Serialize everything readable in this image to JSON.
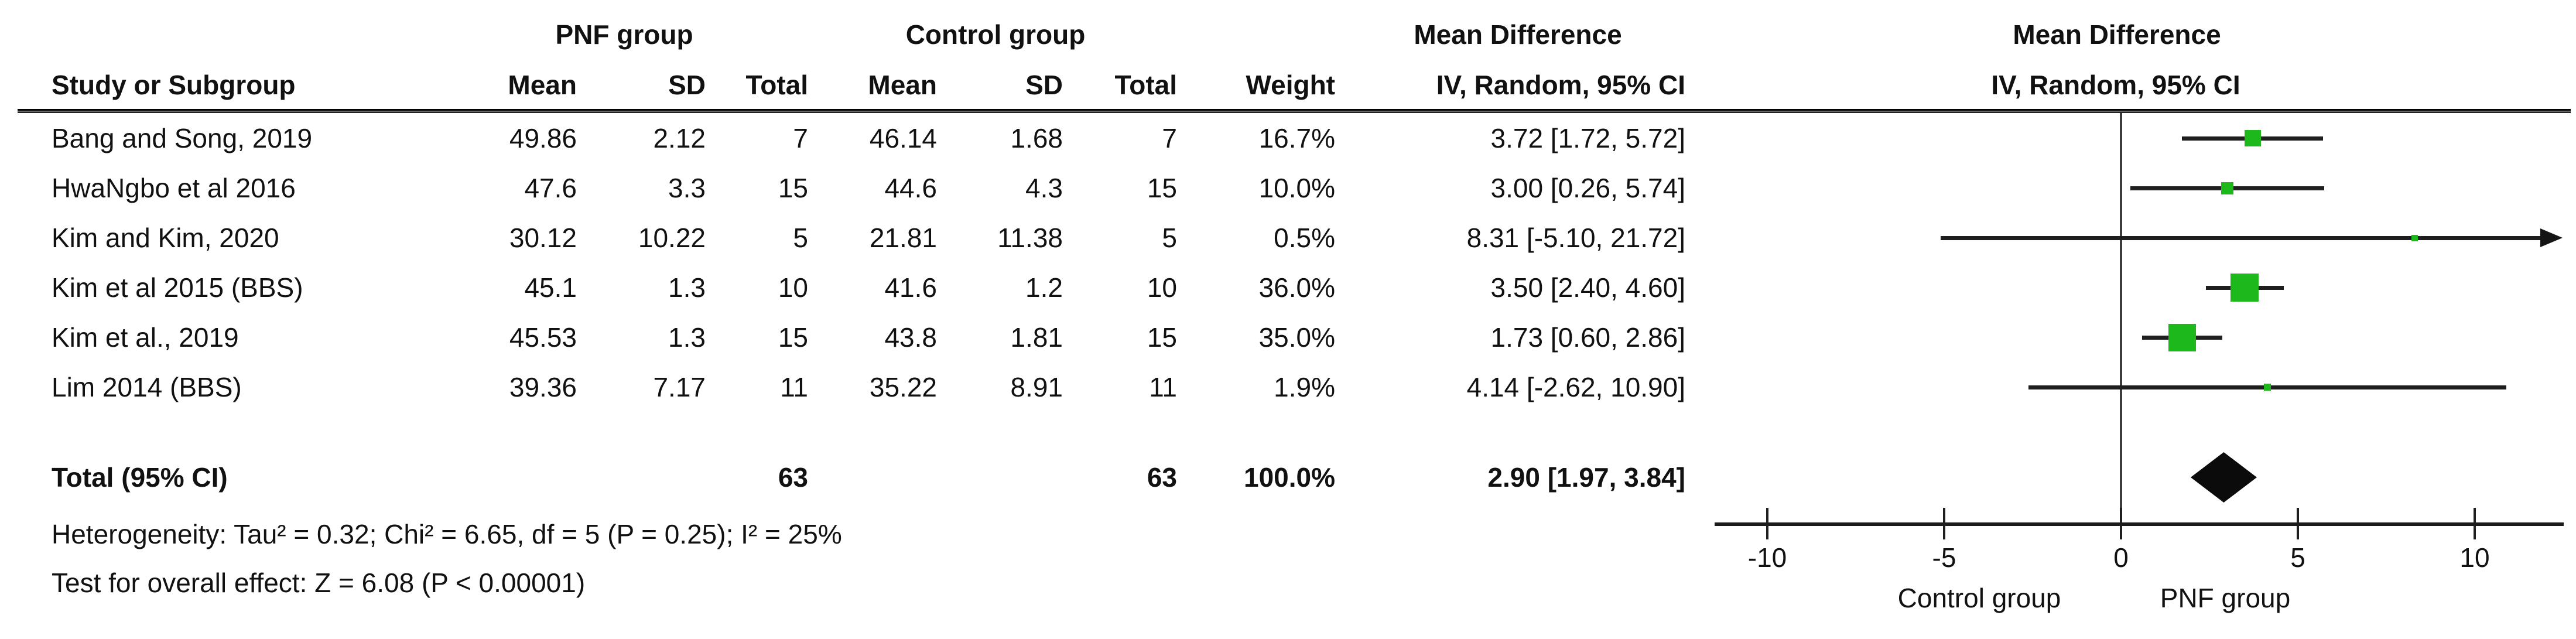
{
  "table": {
    "group_headers": {
      "pnf": "PNF group",
      "control": "Control group",
      "md_text_col": "Mean Difference",
      "md_plot_col": "Mean Difference"
    },
    "col_headers": {
      "study": "Study or Subgroup",
      "pnf_mean": "Mean",
      "pnf_sd": "SD",
      "pnf_total": "Total",
      "ctrl_mean": "Mean",
      "ctrl_sd": "SD",
      "ctrl_total": "Total",
      "weight": "Weight",
      "ci_text": "IV, Random, 95% CI",
      "ci_plot": "IV, Random, 95% CI"
    },
    "rows": [
      {
        "study": "Bang and Song, 2019",
        "pnf_mean": "49.86",
        "pnf_sd": "2.12",
        "pnf_total": "7",
        "ctrl_mean": "46.14",
        "ctrl_sd": "1.68",
        "ctrl_total": "7",
        "weight": "16.7%",
        "ci": "3.72 [1.72, 5.72]"
      },
      {
        "study": "HwaNgbo et al 2016",
        "pnf_mean": "47.6",
        "pnf_sd": "3.3",
        "pnf_total": "15",
        "ctrl_mean": "44.6",
        "ctrl_sd": "4.3",
        "ctrl_total": "15",
        "weight": "10.0%",
        "ci": "3.00 [0.26, 5.74]"
      },
      {
        "study": "Kim and Kim, 2020",
        "pnf_mean": "30.12",
        "pnf_sd": "10.22",
        "pnf_total": "5",
        "ctrl_mean": "21.81",
        "ctrl_sd": "11.38",
        "ctrl_total": "5",
        "weight": "0.5%",
        "ci": "8.31 [-5.10, 21.72]"
      },
      {
        "study": "Kim et al 2015 (BBS)",
        "pnf_mean": "45.1",
        "pnf_sd": "1.3",
        "pnf_total": "10",
        "ctrl_mean": "41.6",
        "ctrl_sd": "1.2",
        "ctrl_total": "10",
        "weight": "36.0%",
        "ci": "3.50 [2.40, 4.60]"
      },
      {
        "study": "Kim et al., 2019",
        "pnf_mean": "45.53",
        "pnf_sd": "1.3",
        "pnf_total": "15",
        "ctrl_mean": "43.8",
        "ctrl_sd": "1.81",
        "ctrl_total": "15",
        "weight": "35.0%",
        "ci": "1.73 [0.60, 2.86]"
      },
      {
        "study": "Lim 2014 (BBS)",
        "pnf_mean": "39.36",
        "pnf_sd": "7.17",
        "pnf_total": "11",
        "ctrl_mean": "35.22",
        "ctrl_sd": "8.91",
        "ctrl_total": "11",
        "weight": "1.9%",
        "ci": "4.14 [-2.62, 10.90]"
      }
    ],
    "total_row": {
      "label": "Total (95% CI)",
      "pnf_total": "63",
      "ctrl_total": "63",
      "weight": "100.0%",
      "ci": "2.90 [1.97, 3.84]"
    },
    "heterogeneity": "Heterogeneity: Tau² = 0.32; Chi² = 6.65, df = 5 (P = 0.25); I² = 25%",
    "overall_effect": "Test for overall effect: Z = 6.08 (P < 0.00001)"
  },
  "chart_data": {
    "type": "scatter",
    "subtype": "forest-plot",
    "title": "Mean Difference",
    "effect_model": "IV, Random, 95% CI",
    "studies": [
      {
        "name": "Bang and Song, 2019",
        "md": 3.72,
        "lo": 1.72,
        "hi": 5.72,
        "weight": 16.7
      },
      {
        "name": "HwaNgbo et al 2016",
        "md": 3.0,
        "lo": 0.26,
        "hi": 5.74,
        "weight": 10.0
      },
      {
        "name": "Kim and Kim, 2020",
        "md": 8.31,
        "lo": -5.1,
        "hi": 21.72,
        "weight": 0.5
      },
      {
        "name": "Kim et al 2015 (BBS)",
        "md": 3.5,
        "lo": 2.4,
        "hi": 4.6,
        "weight": 36.0
      },
      {
        "name": "Kim et al., 2019",
        "md": 1.73,
        "lo": 0.6,
        "hi": 2.86,
        "weight": 35.0
      },
      {
        "name": "Lim 2014 (BBS)",
        "md": 4.14,
        "lo": -2.62,
        "hi": 10.9,
        "weight": 1.9
      }
    ],
    "total": {
      "md": 2.9,
      "lo": 1.97,
      "hi": 3.84,
      "weight": 100.0
    },
    "axis": {
      "ticks": [
        -10,
        -5,
        0,
        5,
        10
      ],
      "xlim": [
        -11.5,
        12.5
      ],
      "grid": false,
      "left_label": "Control group",
      "right_label": "PNF group"
    }
  },
  "colors": {
    "marker_green": "#1cb81c",
    "line_black": "#1f1f1f",
    "diamond_black": "#0b0b0b"
  }
}
